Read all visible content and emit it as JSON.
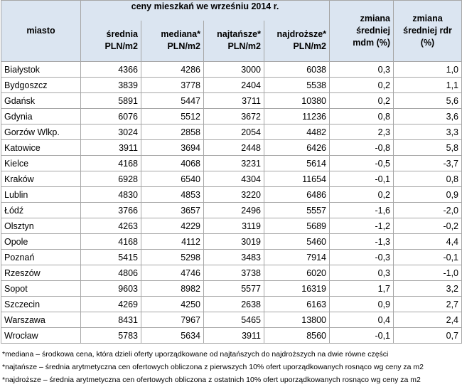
{
  "table": {
    "group_header": "ceny mieszkań we wrześniu 2014 r.",
    "columns": [
      "miasto",
      "średnia\nPLN/m2",
      "mediana*\nPLN/m2",
      "najtańsze*\nPLN/m2",
      "najdroższe*\nPLN/m2",
      "zmiana\nśredniej\nmdm (%)",
      "zmiana\nśredniej rdr\n(%)"
    ],
    "rows": [
      [
        "Białystok",
        "4366",
        "4286",
        "3000",
        "6038",
        "0,3",
        "1,0"
      ],
      [
        "Bydgoszcz",
        "3839",
        "3778",
        "2404",
        "5538",
        "0,2",
        "1,1"
      ],
      [
        "Gdańsk",
        "5891",
        "5447",
        "3711",
        "10380",
        "0,2",
        "5,6"
      ],
      [
        "Gdynia",
        "6076",
        "5512",
        "3672",
        "11236",
        "0,8",
        "3,6"
      ],
      [
        "Gorzów Wlkp.",
        "3024",
        "2858",
        "2054",
        "4482",
        "2,3",
        "3,3"
      ],
      [
        "Katowice",
        "3911",
        "3694",
        "2448",
        "6426",
        "-0,8",
        "5,8"
      ],
      [
        "Kielce",
        "4168",
        "4068",
        "3231",
        "5614",
        "-0,5",
        "-3,7"
      ],
      [
        "Kraków",
        "6928",
        "6540",
        "4304",
        "11654",
        "-0,1",
        "0,8"
      ],
      [
        "Lublin",
        "4830",
        "4853",
        "3220",
        "6486",
        "0,2",
        "0,9"
      ],
      [
        "Łódź",
        "3766",
        "3657",
        "2496",
        "5557",
        "-1,6",
        "-2,0"
      ],
      [
        "Olsztyn",
        "4263",
        "4229",
        "3119",
        "5689",
        "-1,2",
        "-0,2"
      ],
      [
        "Opole",
        "4168",
        "4112",
        "3019",
        "5460",
        "-1,3",
        "4,4"
      ],
      [
        "Poznań",
        "5415",
        "5298",
        "3483",
        "7914",
        "-0,3",
        "-0,1"
      ],
      [
        "Rzeszów",
        "4806",
        "4746",
        "3738",
        "6020",
        "0,3",
        "-1,0"
      ],
      [
        "Sopot",
        "9603",
        "8982",
        "5577",
        "16319",
        "1,7",
        "3,2"
      ],
      [
        "Szczecin",
        "4269",
        "4250",
        "2638",
        "6163",
        "0,9",
        "2,7"
      ],
      [
        "Warszawa",
        "8431",
        "7967",
        "5465",
        "13800",
        "0,4",
        "2,4"
      ],
      [
        "Wrocław",
        "5783",
        "5634",
        "3911",
        "8560",
        "-0,1",
        "0,7"
      ]
    ]
  },
  "footnotes": [
    "*mediana – środkowa cena, która dzieli oferty uporządkowane od najtańszych do najdroższych na dwie równe części",
    "*najtańsze – średnia arytmetyczna cen ofertowych obliczona z pierwszych 10% ofert uporządkowanych rosnąco wg ceny za m2",
    "*najdroższe – średnia arytmetyczna cen ofertowych obliczona z ostatnich 10% ofert uporządkowanych rosnąco wg ceny za m2"
  ]
}
